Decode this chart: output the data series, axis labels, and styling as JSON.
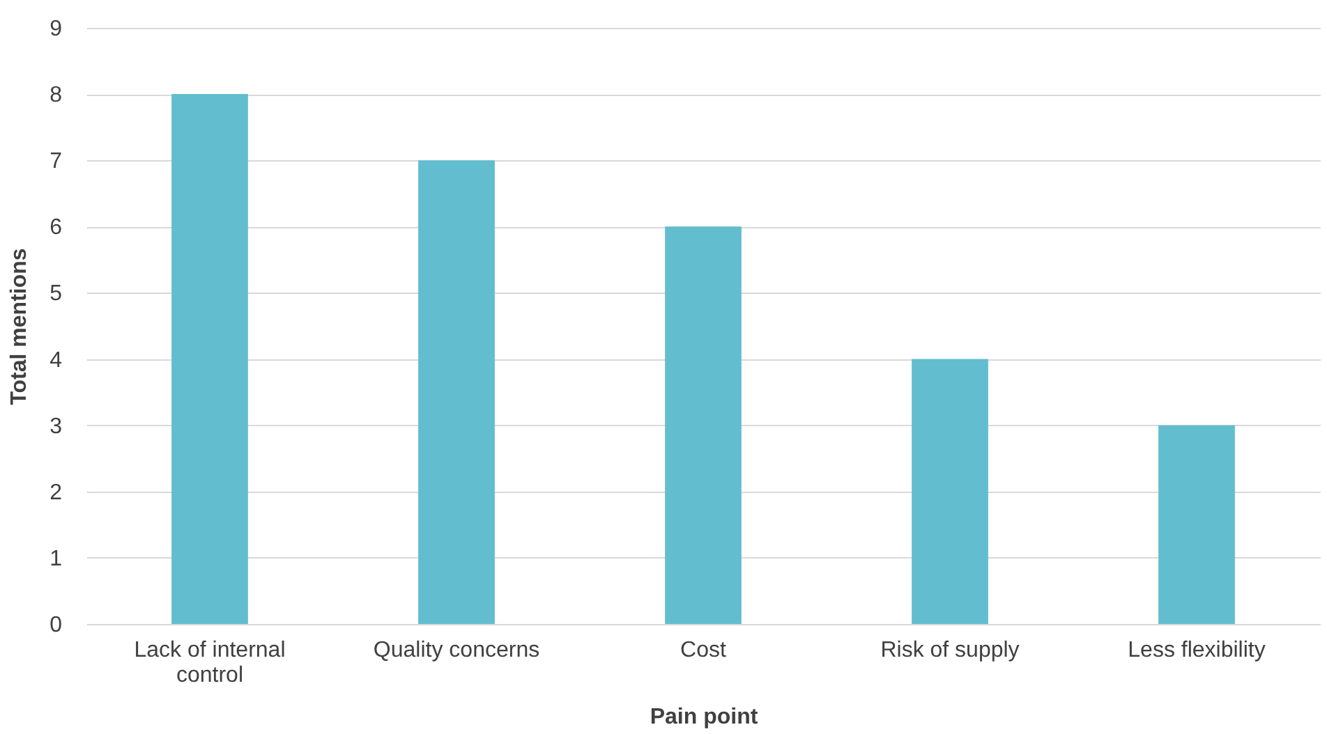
{
  "chart_data": {
    "type": "bar",
    "xlabel": "Pain point",
    "ylabel": "Total mentions",
    "categories": [
      "Lack of internal control",
      "Quality concerns",
      "Cost",
      "Risk of supply",
      "Less flexibility"
    ],
    "values": [
      8,
      7,
      6,
      4,
      3
    ],
    "color": "#62bdcf",
    "ylim": [
      0,
      9
    ],
    "yticks": [
      0,
      1,
      2,
      3,
      4,
      5,
      6,
      7,
      8,
      9
    ],
    "grid": "y"
  }
}
